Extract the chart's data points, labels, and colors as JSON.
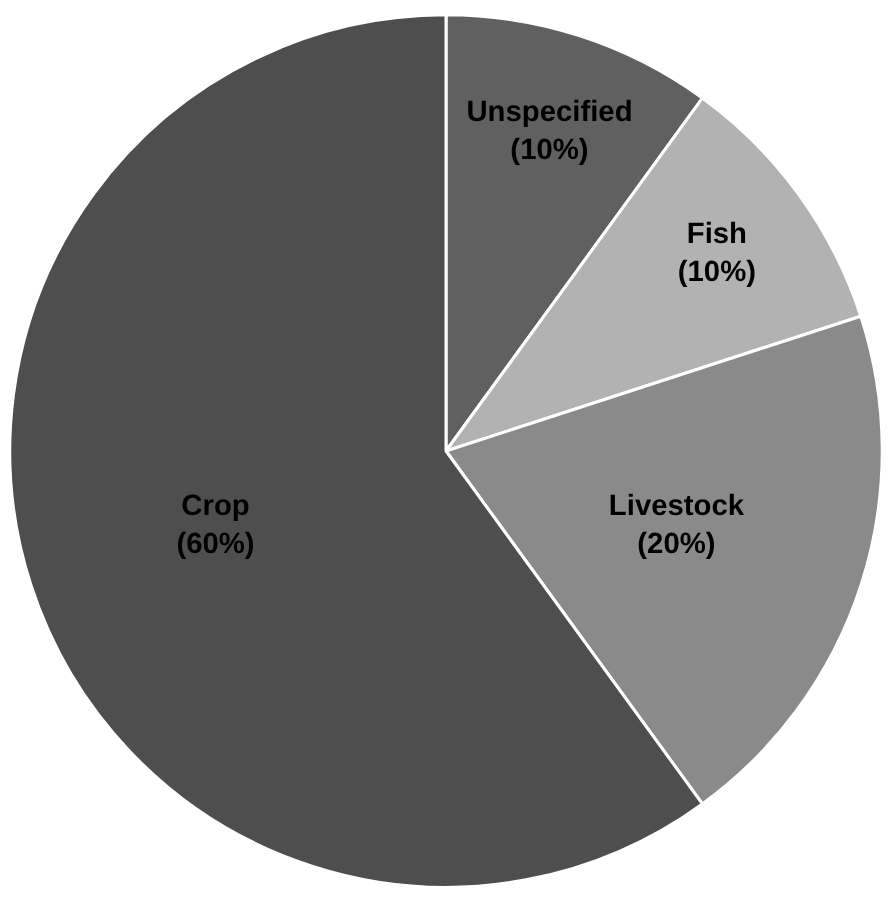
{
  "chart_data": {
    "type": "pie",
    "categories": [
      "Unspecified",
      "Fish",
      "Livestock",
      "Crop"
    ],
    "values": [
      10,
      10,
      20,
      60
    ],
    "value_labels": [
      "(10%)",
      "(10%)",
      "(20%)",
      "(60%)"
    ],
    "colors": [
      "#606060",
      "#b2b2b2",
      "#8a8a8a",
      "#4e4e4e"
    ],
    "legend": false
  }
}
